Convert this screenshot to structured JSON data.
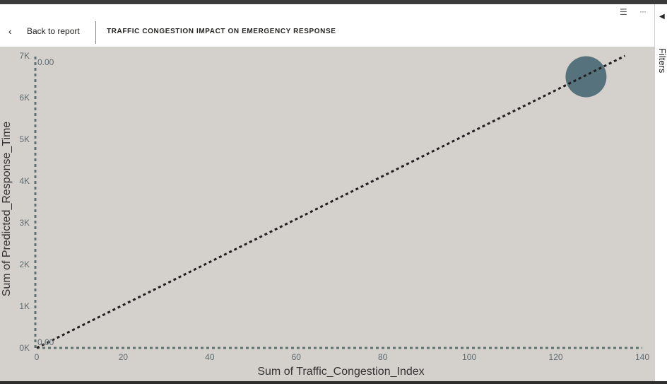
{
  "header": {
    "back_label": "Back to report",
    "title": "TRAFFIC CONGESTION IMPACT ON EMERGENCY RESPONSE"
  },
  "side_pane": {
    "label": "Filters"
  },
  "icons": {
    "back": "chevron-left-icon",
    "filter": "filter-icon",
    "more": "more-options-icon",
    "pane": "collapse-arrow-icon"
  },
  "colors": {
    "plot_background": "#d4d1cd",
    "bubble": "#4f6d78",
    "trend_line": "#1f1f1f",
    "axis_dotted": "#5f7272",
    "label_text": "#5f6b6f"
  },
  "chart_data": {
    "type": "scatter",
    "xlabel": "Sum of Traffic_Congestion_Index",
    "ylabel": "Sum of Predicted_Response_Time",
    "xlim": [
      0,
      140
    ],
    "ylim": [
      0,
      7000
    ],
    "x_ticks": [
      "0",
      "20",
      "40",
      "60",
      "80",
      "100",
      "120",
      "140"
    ],
    "y_ticks": [
      "0K",
      "1K",
      "2K",
      "3K",
      "4K",
      "5K",
      "6K",
      "7K"
    ],
    "points": [
      {
        "x": 127,
        "y": 6500
      }
    ],
    "trend_line": {
      "x": [
        0,
        136
      ],
      "y": [
        0,
        7000
      ]
    },
    "annotations": [
      {
        "text": "0.00",
        "x": 0,
        "y": 7000
      },
      {
        "text": "0.00",
        "x": 0,
        "y": 0
      }
    ],
    "grid": false
  }
}
